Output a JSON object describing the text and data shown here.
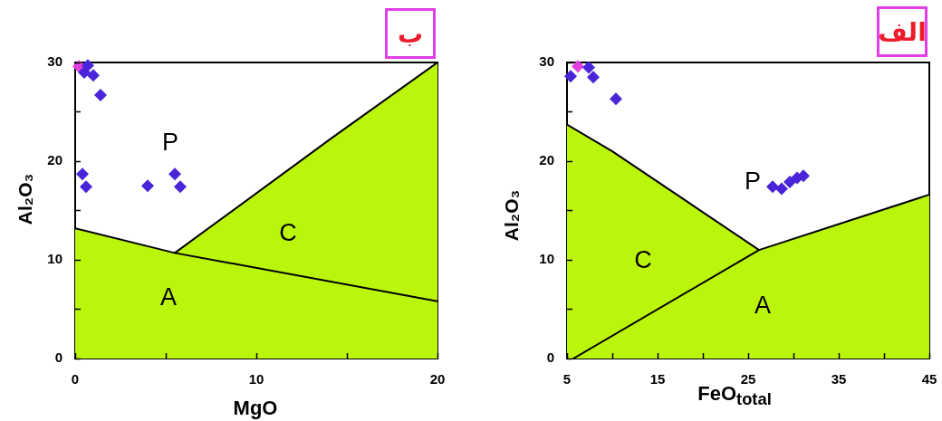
{
  "chart_data": [
    {
      "type": "scatter",
      "title": "ب",
      "xlabel": "MgO",
      "ylabel": "Al₂O₃",
      "xlim": [
        0,
        20
      ],
      "ylim": [
        0,
        30
      ],
      "xticks": [
        0,
        {
          "value": 5,
          "label": null
        },
        10,
        {
          "value": 15,
          "label": null
        },
        20
      ],
      "yticks": [
        0,
        {
          "value": 5,
          "label": null
        },
        10,
        {
          "value": 15,
          "label": null
        },
        20,
        {
          "value": 25,
          "label": null
        },
        30
      ],
      "series": [
        {
          "type": "area",
          "color": "#bcf50c",
          "x": [
            0,
            5.5,
            14.2,
            20
          ],
          "values": [
            13.2,
            10.7,
            22.4,
            30
          ]
        },
        {
          "type": "line",
          "color": "#000000",
          "x": [
            5.5,
            20
          ],
          "values": [
            10.7,
            5.8
          ]
        },
        {
          "color": "#e040e0",
          "marker": "diamond",
          "x": [
            0.2
          ],
          "values": [
            29.6
          ]
        },
        {
          "color": "#4a24d8",
          "marker": "diamond",
          "x": [
            0.7,
            0.5,
            1.0,
            1.4,
            0.4,
            0.6,
            4.0,
            5.5,
            5.8
          ],
          "values": [
            29.7,
            29.0,
            28.7,
            26.7,
            18.7,
            17.4,
            17.5,
            18.7,
            17.4
          ]
        }
      ],
      "annotations": [
        "P",
        "C",
        "A"
      ]
    },
    {
      "type": "scatter",
      "title": "الف",
      "xlabel": "FeO$_{total}$",
      "ylabel": "Al₂O₃",
      "xlim": [
        5,
        45
      ],
      "ylim": [
        0,
        30
      ],
      "xticks": [
        5,
        {
          "value": 10,
          "label": null
        },
        15,
        {
          "value": 20,
          "label": null
        },
        25,
        {
          "value": 30,
          "label": null
        },
        35,
        {
          "value": 40,
          "label": null
        },
        45
      ],
      "yticks": [
        0,
        {
          "value": 5,
          "label": null
        },
        10,
        {
          "value": 15,
          "label": null
        },
        20,
        {
          "value": 25,
          "label": null
        },
        30
      ],
      "series": [
        {
          "type": "area",
          "color": "#bcf50c",
          "x": [
            5,
            10,
            26.2,
            45
          ],
          "values": [
            23.7,
            21.0,
            11.0,
            16.6
          ]
        },
        {
          "type": "line",
          "color": "#000000",
          "x": [
            5.7,
            26.2
          ],
          "values": [
            0,
            11.0
          ]
        },
        {
          "color": "#e040e0",
          "marker": "diamond",
          "x": [
            6.2
          ],
          "values": [
            29.6
          ]
        },
        {
          "color": "#4a24d8",
          "marker": "diamond",
          "x": [
            5.4,
            7.4,
            7.9,
            10.4,
            27.7,
            28.7,
            29.6,
            30.4,
            31.1
          ],
          "values": [
            28.6,
            29.5,
            28.5,
            26.3,
            17.4,
            17.2,
            17.9,
            18.3,
            18.5
          ]
        }
      ],
      "annotations": [
        "P",
        "C",
        "A"
      ]
    }
  ]
}
